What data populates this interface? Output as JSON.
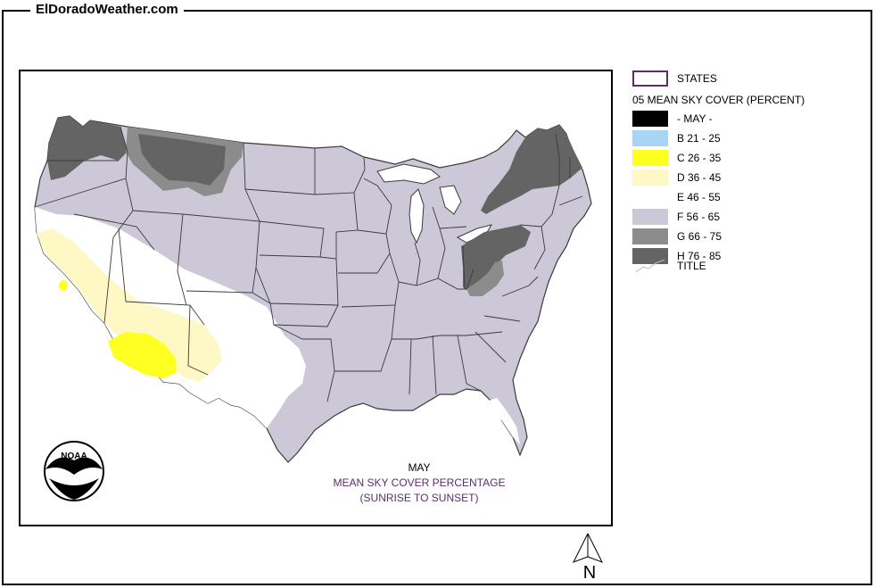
{
  "header": {
    "site_title": "ElDoradoWeather.com"
  },
  "legend": {
    "states_label": "STATES",
    "layer_title": "05 MEAN SKY COVER (PERCENT)",
    "items": [
      {
        "code": "-",
        "label": "- MAY -",
        "color": "#000000"
      },
      {
        "code": "B",
        "label": "B 21 - 25",
        "color": "#a8d4f5"
      },
      {
        "code": "C",
        "label": "C 26 - 35",
        "color": "#ffff22"
      },
      {
        "code": "D",
        "label": "D 36 - 45",
        "color": "#fdf8c4"
      },
      {
        "code": "E",
        "label": "E 46 - 55",
        "color": "#ffffff"
      },
      {
        "code": "F",
        "label": "F 56 - 65",
        "color": "#cdc8d8"
      },
      {
        "code": "G",
        "label": "G 66 - 75",
        "color": "#8c8c8c"
      },
      {
        "code": "H",
        "label": "H 76 - 85",
        "color": "#646464"
      }
    ],
    "title_label": "TITLE"
  },
  "map": {
    "month": "MAY",
    "caption_line1": "MEAN SKY COVER PERCENTAGE",
    "caption_line2": "(SUNRISE TO SUNSET)",
    "logo_text": "NOAA",
    "north_label": "N",
    "colors": {
      "state_border": "#3a3a3a",
      "lake": "#ffffff",
      "caption_purple": "#5a2d6e"
    }
  }
}
